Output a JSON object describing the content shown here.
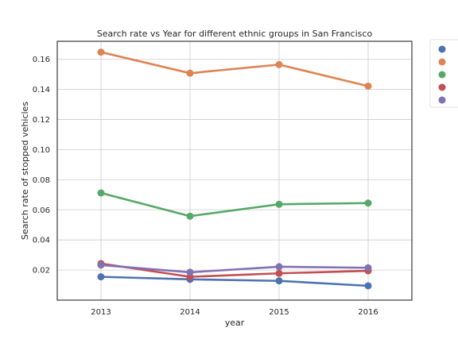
{
  "chart_data": {
    "type": "line",
    "title": "Search rate vs Year for different ethnic groups in San Francisco",
    "xlabel": "year",
    "ylabel": "Search rate of stopped vehicles",
    "categories": [
      "2013",
      "2014",
      "2015",
      "2016"
    ],
    "ylim": [
      0.0,
      0.172
    ],
    "yticks": [
      0.02,
      0.04,
      0.06,
      0.08,
      0.1,
      0.12,
      0.14,
      0.16
    ],
    "ytick_labels": [
      "0.02",
      "0.04",
      "0.06",
      "0.08",
      "0.10",
      "0.12",
      "0.14",
      "0.16"
    ],
    "grid": true,
    "legend": {
      "placement": "outside-right",
      "labels_visible": false
    },
    "series": [
      {
        "color": "#4c72b0",
        "values": [
          0.0155,
          0.0138,
          0.0128,
          0.0095
        ]
      },
      {
        "color": "#dd8452",
        "values": [
          0.1648,
          0.1508,
          0.1565,
          0.1422
        ]
      },
      {
        "color": "#55a868",
        "values": [
          0.0712,
          0.0558,
          0.0637,
          0.0645
        ]
      },
      {
        "color": "#c44e52",
        "values": [
          0.0243,
          0.0155,
          0.0178,
          0.0195
        ]
      },
      {
        "color": "#8172b3",
        "values": [
          0.0233,
          0.0185,
          0.0222,
          0.0215
        ]
      }
    ]
  }
}
